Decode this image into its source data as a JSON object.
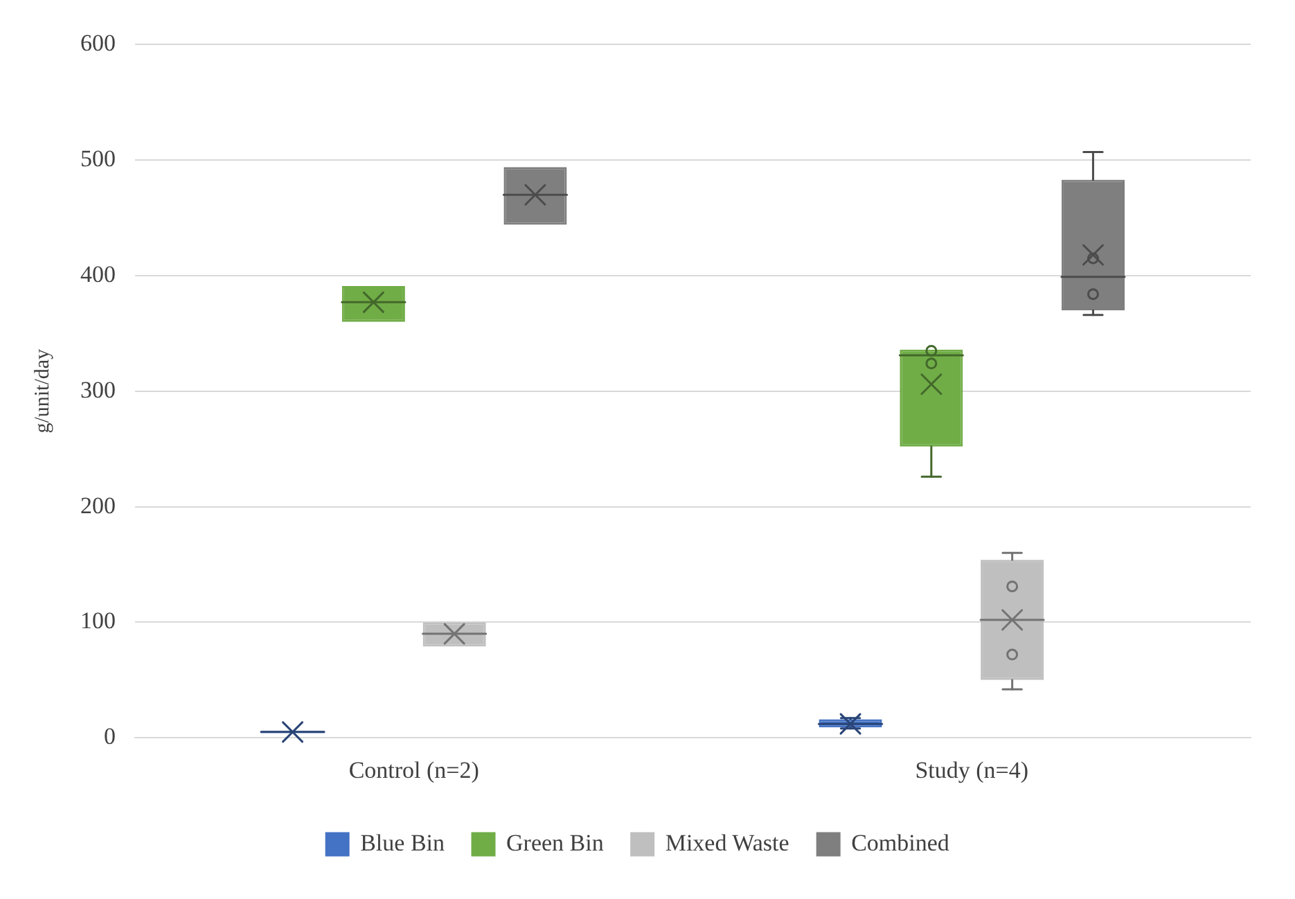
{
  "chart_data": {
    "type": "box",
    "ylabel": "g/unit/day",
    "categories": [
      "Control (n=2)",
      "Study (n=4)"
    ],
    "ylim": [
      0,
      600
    ],
    "yticks": [
      0,
      100,
      200,
      300,
      400,
      500,
      600
    ],
    "grid": "y",
    "legend": "bottom",
    "series": [
      {
        "name": "Blue Bin",
        "color": "#4472c4",
        "boxes": [
          {
            "low": 4,
            "q1": 4,
            "median": 5,
            "q3": 6,
            "high": 6,
            "mean": 5
          },
          {
            "low": 8,
            "q1": 9,
            "median": 12,
            "q3": 16,
            "high": 17,
            "mean": 12
          }
        ]
      },
      {
        "name": "Green Bin",
        "color": "#70ad47",
        "boxes": [
          {
            "low": 360,
            "q1": 360,
            "median": 377,
            "q3": 391,
            "high": 391,
            "mean": 377
          },
          {
            "low": 226,
            "q1": 252,
            "median": 331,
            "q3": 336,
            "high": 336,
            "mean": 306,
            "outliers": [
              335,
              324
            ]
          }
        ]
      },
      {
        "name": "Mixed Waste",
        "color": "#bfbfbf",
        "boxes": [
          {
            "low": 79,
            "q1": 79,
            "median": 90,
            "q3": 100,
            "high": 100,
            "mean": 90
          },
          {
            "low": 42,
            "q1": 50,
            "median": 102,
            "q3": 154,
            "high": 160,
            "mean": 102,
            "outliers": [
              131,
              72
            ]
          }
        ]
      },
      {
        "name": "Combined",
        "color": "#7f7f7f",
        "boxes": [
          {
            "low": 444,
            "q1": 444,
            "median": 470,
            "q3": 494,
            "high": 494,
            "mean": 470
          },
          {
            "low": 366,
            "q1": 370,
            "median": 399,
            "q3": 483,
            "high": 507,
            "mean": 418,
            "outliers": [
              415,
              384
            ]
          }
        ]
      }
    ]
  }
}
